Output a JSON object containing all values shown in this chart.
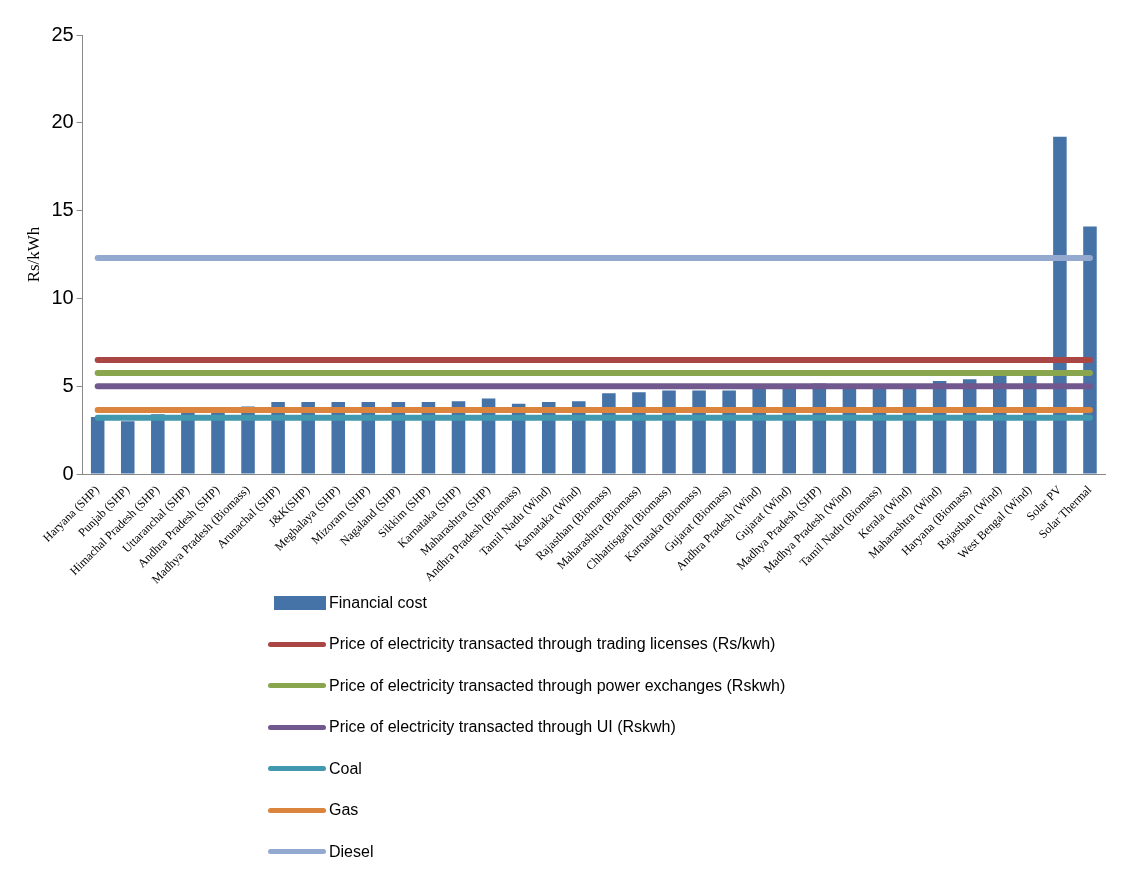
{
  "chart_data": {
    "type": "bar",
    "ylabel": "Rs/kWh",
    "categories": [
      "Haryana (SHP)",
      "Punjab (SHP)",
      "Himachal Pradesh (SHP)",
      "Uttaranchal (SHP)",
      "Andhra Pradesh (SHP)",
      "Madhya Pradesh (Biomass)",
      "Arunachal (SHP)",
      "J&K(SHP)",
      "Meghalaya (SHP)",
      "Mizoram (SHP)",
      "Nagaland (SHP)",
      "Sikkim (SHP)",
      "Karnataka (SHP)",
      "Maharashtra (SHP)",
      "Andhra Pradesh (Biomass)",
      "Tamil Nadu (Wind)",
      "Karnataka (Wind)",
      "Rajasthan (Biomass)",
      "Maharashtra (Biomass)",
      "Chhattisgarh (Biomass)",
      "Karnataka (Biomass)",
      "Gujarat (Biomass)",
      "Andhra Pradesh (Wind)",
      "Gujarat (Wind)",
      "Madhya Pradesh (SHP)",
      "Madhya Pradesh (Wind)",
      "Tamil Nadu (Biomass)",
      "Kerala (Wind)",
      "Maharashtra (Wind)",
      "Haryana (Biomass)",
      "Rajasthan (Wind)",
      "West Bengal (Wind)",
      "Solar PV",
      "Solar Thermal"
    ],
    "series": [
      {
        "name": "Financial cost",
        "color": "#4572a7",
        "values": [
          3.25,
          3.0,
          3.4,
          3.5,
          3.6,
          3.85,
          4.1,
          4.1,
          4.1,
          4.1,
          4.1,
          4.1,
          4.15,
          4.3,
          4.0,
          4.1,
          4.15,
          4.6,
          4.65,
          4.75,
          4.75,
          4.75,
          5.0,
          5.0,
          5.15,
          5.0,
          5.0,
          5.0,
          5.3,
          5.4,
          5.6,
          5.6,
          19.2,
          14.1
        ]
      },
      {
        "name": "Price of electricity transacted through trading licenses (Rs/kwh)",
        "type": "line",
        "color": "#aa4643",
        "values": [
          6.5,
          6.5,
          6.5,
          6.5,
          6.5,
          6.5,
          6.5,
          6.5,
          6.5,
          6.5,
          6.5,
          6.5,
          6.5,
          6.5,
          6.5,
          6.5,
          6.5,
          6.5,
          6.5,
          6.5,
          6.5,
          6.5,
          6.5,
          6.5,
          6.5,
          6.5,
          6.5,
          6.5,
          6.5,
          6.5,
          6.5,
          6.5,
          6.5,
          6.5
        ]
      },
      {
        "name": "Price of electricity transacted through power exchanges (Rskwh)",
        "type": "line",
        "color": "#89a54e",
        "values": [
          5.75,
          5.75,
          5.75,
          5.75,
          5.75,
          5.75,
          5.75,
          5.75,
          5.75,
          5.75,
          5.75,
          5.75,
          5.75,
          5.75,
          5.75,
          5.75,
          5.75,
          5.75,
          5.75,
          5.75,
          5.75,
          5.75,
          5.75,
          5.75,
          5.75,
          5.75,
          5.75,
          5.75,
          5.75,
          5.75,
          5.75,
          5.75,
          5.75,
          5.75
        ]
      },
      {
        "name": "Price of electricity transacted through UI (Rskwh)",
        "type": "line",
        "color": "#71588f",
        "values": [
          5.0,
          5.0,
          5.0,
          5.0,
          5.0,
          5.0,
          5.0,
          5.0,
          5.0,
          5.0,
          5.0,
          5.0,
          5.0,
          5.0,
          5.0,
          5.0,
          5.0,
          5.0,
          5.0,
          5.0,
          5.0,
          5.0,
          5.0,
          5.0,
          5.0,
          5.0,
          5.0,
          5.0,
          5.0,
          5.0,
          5.0,
          5.0,
          5.0,
          5.0
        ]
      },
      {
        "name": "Coal",
        "type": "line",
        "color": "#4198af",
        "values": [
          3.2,
          3.2,
          3.2,
          3.2,
          3.2,
          3.2,
          3.2,
          3.2,
          3.2,
          3.2,
          3.2,
          3.2,
          3.2,
          3.2,
          3.2,
          3.2,
          3.2,
          3.2,
          3.2,
          3.2,
          3.2,
          3.2,
          3.2,
          3.2,
          3.2,
          3.2,
          3.2,
          3.2,
          3.2,
          3.2,
          3.2,
          3.2,
          3.2,
          3.2
        ]
      },
      {
        "name": "Gas",
        "type": "line",
        "color": "#db843d",
        "values": [
          3.65,
          3.65,
          3.65,
          3.65,
          3.65,
          3.65,
          3.65,
          3.65,
          3.65,
          3.65,
          3.65,
          3.65,
          3.65,
          3.65,
          3.65,
          3.65,
          3.65,
          3.65,
          3.65,
          3.65,
          3.65,
          3.65,
          3.65,
          3.65,
          3.65,
          3.65,
          3.65,
          3.65,
          3.65,
          3.65,
          3.65,
          3.65,
          3.65,
          3.65
        ]
      },
      {
        "name": "Diesel",
        "type": "line",
        "color": "#93a9cf",
        "values": [
          12.3,
          12.3,
          12.3,
          12.3,
          12.3,
          12.3,
          12.3,
          12.3,
          12.3,
          12.3,
          12.3,
          12.3,
          12.3,
          12.3,
          12.3,
          12.3,
          12.3,
          12.3,
          12.3,
          12.3,
          12.3,
          12.3,
          12.3,
          12.3,
          12.3,
          12.3,
          12.3,
          12.3,
          12.3,
          12.3,
          12.3,
          12.3,
          12.3,
          12.3
        ]
      }
    ],
    "ylim": [
      0,
      25
    ],
    "yticks": [
      0,
      5,
      10,
      15,
      20,
      25
    ],
    "grid": false,
    "legend": "bottom",
    "marker": "none",
    "line_style": "solid"
  }
}
